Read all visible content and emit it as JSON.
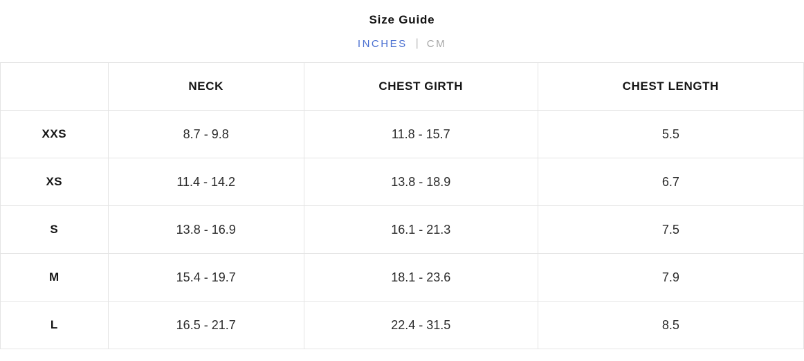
{
  "header": {
    "title": "Size Guide",
    "units": {
      "inches_label": "INCHES",
      "divider": "|",
      "cm_label": "CM",
      "selected": "INCHES"
    }
  },
  "colors": {
    "accent_blue": "#4a6fd1",
    "inactive_gray": "#a6a6a6",
    "border_gray": "#e4e4e4",
    "text_dark": "#141414"
  },
  "table": {
    "columns": [
      "",
      "NECK",
      "CHEST GIRTH",
      "CHEST LENGTH"
    ],
    "rows": [
      {
        "size": "XXS",
        "neck": "8.7 - 9.8",
        "chest_girth": "11.8 - 15.7",
        "chest_length": "5.5"
      },
      {
        "size": "XS",
        "neck": "11.4 - 14.2",
        "chest_girth": "13.8 - 18.9",
        "chest_length": "6.7"
      },
      {
        "size": "S",
        "neck": "13.8 - 16.9",
        "chest_girth": "16.1 - 21.3",
        "chest_length": "7.5"
      },
      {
        "size": "M",
        "neck": "15.4 - 19.7",
        "chest_girth": "18.1 - 23.6",
        "chest_length": "7.9"
      },
      {
        "size": "L",
        "neck": "16.5 - 21.7",
        "chest_girth": "22.4 - 31.5",
        "chest_length": "8.5"
      }
    ]
  }
}
